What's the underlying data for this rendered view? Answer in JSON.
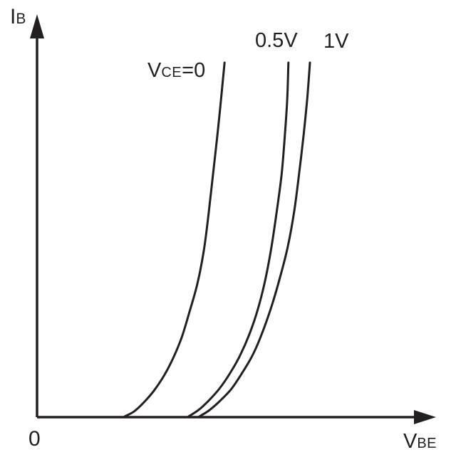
{
  "canvas": {
    "background": "#ffffff",
    "ink_color": "#231f20"
  },
  "chart_data": {
    "type": "line",
    "title": "",
    "description": "Qualitative transistor input characteristic curves: base current IB versus base-emitter voltage VBE for three collector-emitter voltages (VCE = 0, 0.5V, 1V). No numeric scale; exponential curves rising from the VBE axis, shifting right with increasing VCE.",
    "xlabel": {
      "main": "V",
      "sub": "BE"
    },
    "ylabel": {
      "main": "I",
      "sub": "B"
    },
    "origin_label": "0",
    "axes": {
      "numeric_scale": false,
      "grid": false,
      "x_range_units": [
        0,
        1
      ],
      "y_range_units": [
        0,
        1
      ]
    },
    "series": [
      {
        "name": "VCE=0",
        "label": {
          "pre": "V",
          "sub": "CE",
          "post": "=0"
        },
        "points": [
          [
            0.22,
            0.002
          ],
          [
            0.243,
            0.014
          ],
          [
            0.268,
            0.037
          ],
          [
            0.293,
            0.066
          ],
          [
            0.318,
            0.103
          ],
          [
            0.341,
            0.147
          ],
          [
            0.363,
            0.2
          ],
          [
            0.382,
            0.262
          ],
          [
            0.402,
            0.333
          ],
          [
            0.418,
            0.415
          ],
          [
            0.43,
            0.507
          ],
          [
            0.441,
            0.605
          ],
          [
            0.452,
            0.702
          ],
          [
            0.461,
            0.791
          ],
          [
            0.47,
            0.883
          ]
        ]
      },
      {
        "name": "VCE=0.5V",
        "label": {
          "pre": "",
          "sub": "",
          "post": "0.5V"
        },
        "points": [
          [
            0.38,
            0.002
          ],
          [
            0.405,
            0.018
          ],
          [
            0.43,
            0.041
          ],
          [
            0.457,
            0.071
          ],
          [
            0.484,
            0.11
          ],
          [
            0.509,
            0.154
          ],
          [
            0.532,
            0.206
          ],
          [
            0.552,
            0.264
          ],
          [
            0.57,
            0.333
          ],
          [
            0.586,
            0.415
          ],
          [
            0.6,
            0.507
          ],
          [
            0.613,
            0.605
          ],
          [
            0.621,
            0.702
          ],
          [
            0.627,
            0.791
          ],
          [
            0.63,
            0.883
          ]
        ]
      },
      {
        "name": "VCE=1V",
        "label": {
          "pre": "",
          "sub": "",
          "post": "1V"
        },
        "points": [
          [
            0.407,
            0.002
          ],
          [
            0.43,
            0.016
          ],
          [
            0.457,
            0.039
          ],
          [
            0.486,
            0.069
          ],
          [
            0.514,
            0.11
          ],
          [
            0.541,
            0.156
          ],
          [
            0.564,
            0.209
          ],
          [
            0.588,
            0.277
          ],
          [
            0.609,
            0.348
          ],
          [
            0.629,
            0.427
          ],
          [
            0.645,
            0.516
          ],
          [
            0.657,
            0.608
          ],
          [
            0.668,
            0.702
          ],
          [
            0.677,
            0.791
          ],
          [
            0.684,
            0.883
          ]
        ]
      }
    ]
  }
}
